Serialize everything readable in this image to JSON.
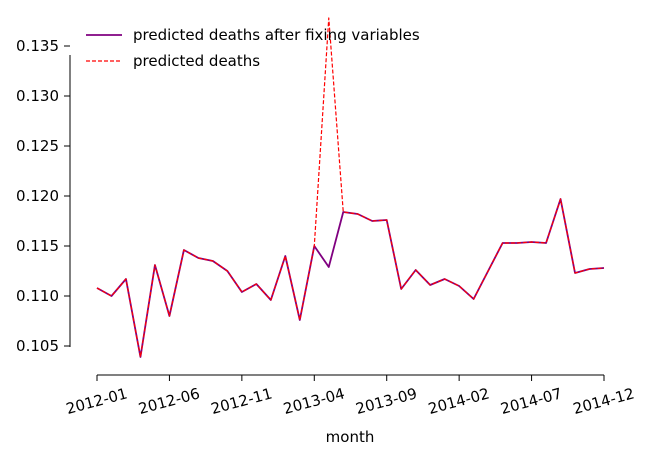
{
  "chart_data": {
    "type": "line",
    "xlabel": "month",
    "ylabel": "",
    "title": "",
    "x_tick_labels": [
      "2012-01",
      "2012-06",
      "2012-11",
      "2013-04",
      "2013-09",
      "2014-02",
      "2014-07",
      "2014-12"
    ],
    "y_tick_labels": [
      "0.105",
      "0.110",
      "0.115",
      "0.120",
      "0.125",
      "0.130",
      "0.135"
    ],
    "y_ticks": [
      0.105,
      0.11,
      0.115,
      0.12,
      0.125,
      0.13,
      0.135
    ],
    "ylim": [
      0.1028,
      0.1372
    ],
    "xlim": [
      "2012-01",
      "2014-12"
    ],
    "grid": false,
    "legend_position": "top-left",
    "x": [
      "2012-01",
      "2012-02",
      "2012-03",
      "2012-04",
      "2012-05",
      "2012-06",
      "2012-07",
      "2012-08",
      "2012-09",
      "2012-10",
      "2012-11",
      "2012-12",
      "2013-01",
      "2013-02",
      "2013-03",
      "2013-04",
      "2013-05",
      "2013-06",
      "2013-07",
      "2013-08",
      "2013-09",
      "2013-10",
      "2013-11",
      "2013-12",
      "2014-01",
      "2014-02",
      "2014-03",
      "2014-04",
      "2014-05",
      "2014-06",
      "2014-07",
      "2014-08",
      "2014-09",
      "2014-10",
      "2014-11",
      "2014-12"
    ],
    "series": [
      {
        "name": "predicted deaths after fixing variables",
        "color": "#800080",
        "style": "solid",
        "values": [
          0.1108,
          0.11,
          0.1117,
          0.1039,
          0.1131,
          0.108,
          0.1146,
          0.1138,
          0.1135,
          0.1125,
          0.1104,
          0.1112,
          0.1096,
          0.114,
          0.1076,
          0.115,
          0.1129,
          0.1184,
          0.1182,
          0.1175,
          0.1176,
          0.1107,
          0.1126,
          0.1111,
          0.1117,
          0.111,
          0.1097,
          0.1125,
          0.1153,
          0.1153,
          0.1154,
          0.1153,
          0.1197,
          0.1123,
          0.1127,
          0.1128
        ]
      },
      {
        "name": "predicted deaths",
        "color": "#ff0000",
        "style": "dashed",
        "values": [
          0.1108,
          0.11,
          0.1117,
          0.1039,
          0.1131,
          0.108,
          0.1146,
          0.1138,
          0.1135,
          0.1125,
          0.1104,
          0.1112,
          0.1096,
          0.114,
          0.1076,
          0.115,
          0.1378,
          0.1184,
          0.1182,
          0.1175,
          0.1176,
          0.1107,
          0.1126,
          0.1111,
          0.1117,
          0.111,
          0.1097,
          0.1125,
          0.1153,
          0.1153,
          0.1154,
          0.1153,
          0.1197,
          0.1123,
          0.1127,
          0.1128
        ]
      }
    ]
  }
}
